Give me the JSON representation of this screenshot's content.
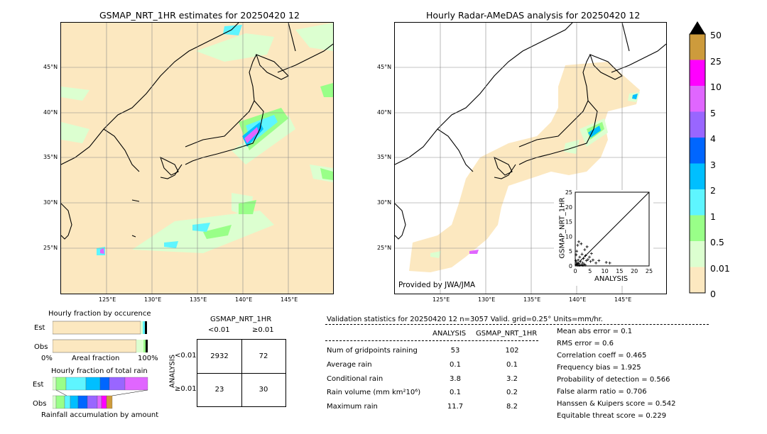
{
  "left_map": {
    "title": "GSMAP_NRT_1HR estimates for 20250420 12",
    "lat_labels": [
      "45°N",
      "40°N",
      "35°N",
      "30°N",
      "25°N"
    ],
    "lon_labels": [
      "125°E",
      "130°E",
      "135°E",
      "140°E",
      "145°E"
    ]
  },
  "right_map": {
    "title": "Hourly Radar-AMeDAS analysis for 20250420 12",
    "lat_labels": [
      "45°N",
      "40°N",
      "35°N",
      "30°N",
      "25°N"
    ],
    "lon_labels": [
      "125°E",
      "130°E",
      "135°E",
      "140°E",
      "145°E"
    ],
    "credit": "Provided by JWA/JMA"
  },
  "colorbar": {
    "labels": [
      "50",
      "25",
      "10",
      "5",
      "4",
      "3",
      "2",
      "1",
      "0.5",
      "0.01",
      "0"
    ],
    "colors": [
      "#cd9b3c",
      "#ff00ff",
      "#e066ff",
      "#9966ff",
      "#0066ff",
      "#00bfff",
      "#5ef5ff",
      "#99ff88",
      "#dcffd0",
      "#fce8c0"
    ]
  },
  "occurrence": {
    "title": "Hourly fraction by occurence",
    "rows": [
      "Est",
      "Obs"
    ],
    "axis_left": "0%",
    "axis_mid": "Areal fraction",
    "axis_right": "100%"
  },
  "total_rain": {
    "title": "Hourly fraction of total rain",
    "rows": [
      "Est",
      "Obs"
    ],
    "footer": "Rainfall accumulation by amount"
  },
  "contingency": {
    "title": "GSMAP_NRT_1HR",
    "col_headers": [
      "<0.01",
      "≥0.01"
    ],
    "row_axis": "ANALYSIS",
    "row_headers": [
      "<0.01",
      "≥0.01"
    ],
    "cells": [
      [
        "2932",
        "72"
      ],
      [
        "23",
        "30"
      ]
    ]
  },
  "validation": {
    "header": "Validation statistics for 20250420 12  n=3057 Valid. grid=0.25° Units=mm/hr.",
    "col1": "ANALYSIS",
    "col2": "GSMAP_NRT_1HR",
    "rows": [
      {
        "label": "Num of gridpoints raining",
        "a": "53",
        "g": "102"
      },
      {
        "label": "Average rain",
        "a": "0.1",
        "g": "0.1"
      },
      {
        "label": "Conditional rain",
        "a": "3.8",
        "g": "3.2"
      },
      {
        "label": "Rain volume (mm km²10⁶)",
        "a": "0.1",
        "g": "0.2"
      },
      {
        "label": "Maximum rain",
        "a": "11.7",
        "g": "8.2"
      }
    ],
    "scores": [
      "Mean abs error =    0.1",
      "RMS error =    0.6",
      "Correlation coeff = 0.465",
      "Frequency bias =  1.925",
      "Probability of detection =  0.566",
      "False alarm ratio =  0.706",
      "Hanssen & Kuipers score =  0.542",
      "Equitable threat score =  0.229"
    ]
  },
  "chart_data": {
    "type": "scatter",
    "xlabel": "ANALYSIS",
    "ylabel": "GSMAP_NRT_1HR",
    "xlim": [
      0,
      25
    ],
    "ylim": [
      0,
      25
    ],
    "ticks": [
      "0",
      "5",
      "10",
      "15",
      "20",
      "25"
    ],
    "points": [
      [
        0.3,
        0.5
      ],
      [
        0.5,
        1.2
      ],
      [
        0.8,
        0.3
      ],
      [
        1.0,
        2.0
      ],
      [
        1.2,
        0.8
      ],
      [
        1.5,
        3.0
      ],
      [
        1.8,
        1.5
      ],
      [
        2.0,
        0.4
      ],
      [
        2.3,
        4.0
      ],
      [
        2.5,
        1.0
      ],
      [
        2.8,
        2.5
      ],
      [
        3.0,
        0.6
      ],
      [
        3.2,
        5.5
      ],
      [
        3.5,
        3.5
      ],
      [
        3.8,
        1.8
      ],
      [
        4.0,
        6.5
      ],
      [
        4.3,
        2.2
      ],
      [
        4.8,
        3.0
      ],
      [
        5.2,
        1.5
      ],
      [
        5.5,
        4.2
      ],
      [
        6.0,
        2.0
      ],
      [
        7.0,
        1.0
      ],
      [
        8.0,
        1.8
      ],
      [
        10.5,
        1.2
      ],
      [
        11.7,
        1.0
      ],
      [
        0.5,
        5.0
      ],
      [
        0.8,
        7.0
      ],
      [
        1.2,
        8.2
      ],
      [
        0.3,
        3.8
      ],
      [
        2.0,
        7.5
      ],
      [
        0.6,
        0.6
      ],
      [
        1.4,
        0.2
      ],
      [
        2.6,
        0.2
      ],
      [
        0.2,
        1.8
      ],
      [
        3.4,
        0.3
      ]
    ]
  }
}
